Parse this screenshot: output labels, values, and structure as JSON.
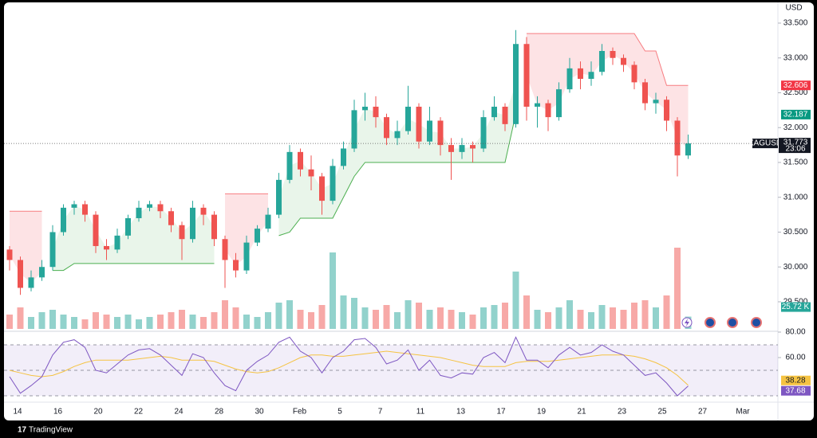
{
  "chart_data": {
    "type": "candlestick",
    "symbol": "XAGUSD",
    "currency": "USD",
    "countdown": "23:06",
    "up_color": "#26a69a",
    "down_color": "#ef5350",
    "ylim": [
      29.111,
      33.74
    ],
    "yticks": [
      {
        "value": 29.5,
        "label": "29.500"
      },
      {
        "value": 30,
        "label": "30.000"
      },
      {
        "value": 30.5,
        "label": "30.500"
      },
      {
        "value": 31,
        "label": "31.000"
      },
      {
        "value": 31.5,
        "label": "31.500"
      },
      {
        "value": 32,
        "label": "32.000"
      },
      {
        "value": 32.5,
        "label": "32.500"
      },
      {
        "value": 33,
        "label": "33.000"
      },
      {
        "value": 33.5,
        "label": "33.500"
      }
    ],
    "grid": false,
    "x_labels": [
      "14",
      "16",
      "20",
      "22",
      "24",
      "28",
      "30",
      "Feb",
      "5",
      "7",
      "11",
      "13",
      "17",
      "19",
      "21",
      "23",
      "25",
      "27",
      "Mar"
    ],
    "candles": {
      "open": [
        30.25,
        30.1,
        29.7,
        29.85,
        30.0,
        30.5,
        30.85,
        30.9,
        30.75,
        30.3,
        30.25,
        30.45,
        30.7,
        30.85,
        30.9,
        30.8,
        30.6,
        30.4,
        30.85,
        30.75,
        30.4,
        30.1,
        29.95,
        30.35,
        30.55,
        30.75,
        31.25,
        31.65,
        31.4,
        31.3,
        30.95,
        31.45,
        31.7,
        32.25,
        32.3,
        32.15,
        31.85,
        31.95,
        32.3,
        31.8,
        32.1,
        31.75,
        31.65,
        31.75,
        31.7,
        32.15,
        32.3,
        32.05,
        33.2,
        32.3,
        32.35,
        32.15,
        32.55,
        32.85,
        32.7,
        32.8,
        33.1,
        33.0,
        32.9,
        32.65,
        32.35,
        32.4,
        32.1,
        31.6
      ],
      "high": [
        30.3,
        30.15,
        29.95,
        30.1,
        30.6,
        30.9,
        30.95,
        30.95,
        30.8,
        30.4,
        30.55,
        30.75,
        30.95,
        30.95,
        30.95,
        30.85,
        30.65,
        30.95,
        30.9,
        30.8,
        30.45,
        30.2,
        30.45,
        30.6,
        30.85,
        31.35,
        31.75,
        31.7,
        31.6,
        31.35,
        31.55,
        31.8,
        32.4,
        32.5,
        32.45,
        32.2,
        32.1,
        32.6,
        32.35,
        32.3,
        32.15,
        31.85,
        31.85,
        31.8,
        32.25,
        32.45,
        32.35,
        33.4,
        33.3,
        32.45,
        32.4,
        32.65,
        33.0,
        32.95,
        32.95,
        33.2,
        33.15,
        33.05,
        32.95,
        32.7,
        32.5,
        32.45,
        32.15,
        31.9
      ],
      "low": [
        29.95,
        29.6,
        29.65,
        29.8,
        29.95,
        30.45,
        30.75,
        30.65,
        30.2,
        30.1,
        30.2,
        30.4,
        30.65,
        30.8,
        30.7,
        30.5,
        30.1,
        30.35,
        30.6,
        30.3,
        29.7,
        29.85,
        29.9,
        30.3,
        30.5,
        30.7,
        31.2,
        31.3,
        31.1,
        30.75,
        30.9,
        31.4,
        31.65,
        32.1,
        32.0,
        31.75,
        31.75,
        31.9,
        31.7,
        31.75,
        31.6,
        31.25,
        31.55,
        31.5,
        31.65,
        32.1,
        31.95,
        32.0,
        32.1,
        32.0,
        31.95,
        32.1,
        32.5,
        32.55,
        32.6,
        32.75,
        32.9,
        32.8,
        32.55,
        32.25,
        32.2,
        31.95,
        31.3,
        31.55
      ],
      "close": [
        30.1,
        29.7,
        29.85,
        30.0,
        30.5,
        30.85,
        30.9,
        30.75,
        30.3,
        30.25,
        30.45,
        30.7,
        30.85,
        30.9,
        30.8,
        30.6,
        30.4,
        30.85,
        30.75,
        30.4,
        30.1,
        29.95,
        30.35,
        30.55,
        30.75,
        31.25,
        31.65,
        31.4,
        31.3,
        30.95,
        31.45,
        31.7,
        32.25,
        32.3,
        32.15,
        31.85,
        31.95,
        32.3,
        31.8,
        32.1,
        31.75,
        31.65,
        31.75,
        31.7,
        32.15,
        32.3,
        32.05,
        33.2,
        32.3,
        32.35,
        32.15,
        32.55,
        32.85,
        32.7,
        32.8,
        33.1,
        33.0,
        32.9,
        32.65,
        32.35,
        32.4,
        32.1,
        31.6,
        31.773
      ]
    },
    "supertrend": {
      "up_color": "#4caf50",
      "down_color": "#f77c80",
      "up": [
        null,
        null,
        null,
        null,
        29.95,
        29.95,
        30.05,
        30.05,
        30.05,
        30.05,
        30.05,
        30.05,
        30.05,
        30.05,
        30.05,
        30.05,
        30.05,
        30.05,
        30.05,
        30.05,
        null,
        null,
        null,
        null,
        null,
        30.45,
        30.5,
        30.7,
        30.7,
        30.7,
        30.7,
        31.0,
        31.3,
        31.5,
        31.5,
        31.5,
        31.5,
        31.5,
        31.5,
        31.5,
        31.5,
        31.5,
        31.5,
        31.5,
        31.5,
        31.5,
        31.5,
        32.2,
        null,
        null,
        null,
        null,
        null,
        null,
        null,
        null,
        null,
        null,
        null,
        null,
        null,
        null,
        null,
        null
      ],
      "down": [
        30.8,
        30.8,
        30.8,
        30.8,
        null,
        null,
        null,
        null,
        null,
        null,
        null,
        null,
        null,
        null,
        null,
        null,
        null,
        null,
        null,
        null,
        31.05,
        31.05,
        31.05,
        31.05,
        31.05,
        null,
        null,
        null,
        null,
        null,
        null,
        null,
        null,
        null,
        null,
        null,
        null,
        null,
        null,
        null,
        null,
        null,
        null,
        null,
        null,
        null,
        null,
        null,
        33.35,
        33.35,
        33.35,
        33.35,
        33.35,
        33.35,
        33.35,
        33.35,
        33.35,
        33.35,
        33.35,
        33.1,
        33.1,
        32.606,
        32.606,
        32.606
      ]
    },
    "marker_price": 32.187,
    "marker_color": "#089981",
    "volume": {
      "ylim": [
        0,
        200
      ],
      "values": [
        30,
        45,
        25,
        35,
        40,
        30,
        25,
        20,
        35,
        30,
        25,
        30,
        20,
        25,
        30,
        35,
        40,
        30,
        25,
        35,
        60,
        45,
        30,
        25,
        35,
        55,
        60,
        40,
        35,
        50,
        160,
        70,
        65,
        45,
        40,
        50,
        35,
        60,
        55,
        40,
        45,
        40,
        35,
        30,
        45,
        50,
        55,
        120,
        70,
        40,
        35,
        45,
        60,
        40,
        35,
        50,
        45,
        40,
        55,
        60,
        45,
        70,
        170,
        25.72
      ],
      "last": {
        "value": 25.72,
        "label": "25.72 K"
      }
    },
    "rsi": {
      "ylim": [
        25,
        81.25
      ],
      "yticks": [
        {
          "value": 80,
          "label": "80.00"
        },
        {
          "value": 60,
          "label": "60.00"
        }
      ],
      "bands": [
        70,
        50,
        30
      ],
      "color": "#7e57c2",
      "ma_color": "#f5c342",
      "values": [
        45,
        32,
        38,
        45,
        62,
        72,
        74,
        68,
        50,
        48,
        55,
        62,
        66,
        67,
        62,
        54,
        46,
        63,
        60,
        48,
        38,
        34,
        50,
        57,
        62,
        72,
        76,
        65,
        60,
        48,
        60,
        65,
        74,
        75,
        68,
        55,
        58,
        66,
        50,
        58,
        46,
        44,
        48,
        47,
        60,
        64,
        56,
        76,
        58,
        58,
        52,
        62,
        68,
        62,
        64,
        70,
        65,
        62,
        54,
        46,
        48,
        40,
        30,
        37.68
      ],
      "ma": [
        50,
        48,
        46,
        45,
        46,
        49,
        53,
        56,
        58,
        58,
        58,
        58,
        59,
        60,
        61,
        60,
        58,
        58,
        58,
        57,
        54,
        51,
        49,
        48,
        49,
        52,
        56,
        60,
        62,
        62,
        61,
        61,
        62,
        63,
        64,
        65,
        64,
        63,
        62,
        61,
        60,
        58,
        56,
        54,
        53,
        53,
        53,
        56,
        57,
        57,
        57,
        58,
        59,
        60,
        61,
        62,
        62,
        62,
        61,
        59,
        56,
        52,
        46,
        38.28
      ]
    }
  }
}
